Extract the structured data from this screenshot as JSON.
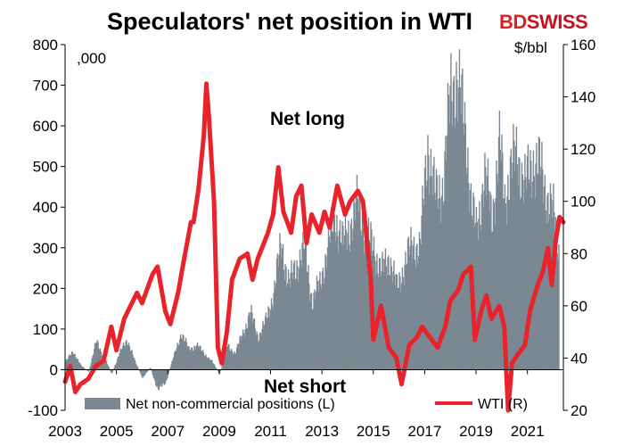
{
  "title": "Speculators' net position in WTI",
  "brand": {
    "part1": "BD",
    "part2": "SWISS"
  },
  "left_unit": ",000",
  "right_unit": "$/bbl",
  "annotations": {
    "long": "Net long",
    "short": "Net short"
  },
  "legend": {
    "bars": "Net non-commercial positions (L)",
    "line": "WTI (R)"
  },
  "colors": {
    "bars": "#7b8893",
    "line": "#e8232b"
  },
  "chart_data": {
    "type": "bar+line",
    "title": "Speculators' net position in WTI",
    "x_ticks": [
      "2003",
      "2005",
      "2007",
      "2009",
      "2011",
      "2013",
      "2015",
      "2017",
      "2019",
      "2021"
    ],
    "left_axis": {
      "label": ",000",
      "range": [
        -100,
        800
      ],
      "ticks": [
        -100,
        0,
        100,
        200,
        300,
        400,
        500,
        600,
        700,
        800
      ]
    },
    "right_axis": {
      "label": "$/bbl",
      "range": [
        20,
        160
      ],
      "ticks": [
        20,
        40,
        60,
        80,
        100,
        120,
        140,
        160
      ]
    },
    "x_range": [
      2003.0,
      2022.4
    ],
    "series": [
      {
        "name": "Net non-commercial positions (L)",
        "type": "bar",
        "axis": "left",
        "points": [
          [
            2003.0,
            20
          ],
          [
            2003.3,
            45
          ],
          [
            2003.6,
            10
          ],
          [
            2003.9,
            -5
          ],
          [
            2004.2,
            70
          ],
          [
            2004.5,
            30
          ],
          [
            2004.8,
            -10
          ],
          [
            2005.1,
            40
          ],
          [
            2005.4,
            75
          ],
          [
            2005.7,
            20
          ],
          [
            2006.0,
            -20
          ],
          [
            2006.3,
            5
          ],
          [
            2006.6,
            -50
          ],
          [
            2006.9,
            -30
          ],
          [
            2007.2,
            30
          ],
          [
            2007.5,
            90
          ],
          [
            2007.8,
            50
          ],
          [
            2008.1,
            60
          ],
          [
            2008.4,
            40
          ],
          [
            2008.7,
            20
          ],
          [
            2009.0,
            -10
          ],
          [
            2009.3,
            60
          ],
          [
            2009.6,
            40
          ],
          [
            2009.9,
            90
          ],
          [
            2010.2,
            140
          ],
          [
            2010.5,
            80
          ],
          [
            2010.8,
            120
          ],
          [
            2011.1,
            190
          ],
          [
            2011.4,
            310
          ],
          [
            2011.7,
            210
          ],
          [
            2012.0,
            260
          ],
          [
            2012.3,
            300
          ],
          [
            2012.6,
            170
          ],
          [
            2012.9,
            210
          ],
          [
            2013.2,
            300
          ],
          [
            2013.5,
            380
          ],
          [
            2013.8,
            310
          ],
          [
            2014.1,
            360
          ],
          [
            2014.4,
            410
          ],
          [
            2014.7,
            330
          ],
          [
            2015.0,
            300
          ],
          [
            2015.3,
            240
          ],
          [
            2015.6,
            280
          ],
          [
            2015.9,
            200
          ],
          [
            2016.2,
            260
          ],
          [
            2016.5,
            310
          ],
          [
            2016.8,
            300
          ],
          [
            2017.1,
            560
          ],
          [
            2017.4,
            420
          ],
          [
            2017.7,
            460
          ],
          [
            2018.0,
            680
          ],
          [
            2018.2,
            730
          ],
          [
            2018.4,
            650
          ],
          [
            2018.6,
            580
          ],
          [
            2018.8,
            400
          ],
          [
            2019.0,
            340
          ],
          [
            2019.3,
            480
          ],
          [
            2019.6,
            380
          ],
          [
            2019.9,
            550
          ],
          [
            2020.1,
            420
          ],
          [
            2020.3,
            490
          ],
          [
            2020.6,
            530
          ],
          [
            2020.9,
            450
          ],
          [
            2021.2,
            520
          ],
          [
            2021.5,
            490
          ],
          [
            2021.8,
            420
          ],
          [
            2022.0,
            380
          ],
          [
            2022.2,
            300
          ]
        ]
      },
      {
        "name": "WTI (R)",
        "type": "line",
        "axis": "right",
        "points": [
          [
            2003.0,
            31
          ],
          [
            2003.2,
            37
          ],
          [
            2003.4,
            27
          ],
          [
            2003.6,
            30
          ],
          [
            2003.9,
            32
          ],
          [
            2004.2,
            37
          ],
          [
            2004.5,
            39
          ],
          [
            2004.8,
            52
          ],
          [
            2005.0,
            43
          ],
          [
            2005.3,
            55
          ],
          [
            2005.6,
            61
          ],
          [
            2005.8,
            65
          ],
          [
            2006.0,
            61
          ],
          [
            2006.4,
            72
          ],
          [
            2006.6,
            75
          ],
          [
            2006.9,
            58
          ],
          [
            2007.1,
            53
          ],
          [
            2007.4,
            65
          ],
          [
            2007.6,
            76
          ],
          [
            2007.9,
            92
          ],
          [
            2008.0,
            92
          ],
          [
            2008.2,
            105
          ],
          [
            2008.4,
            125
          ],
          [
            2008.5,
            145
          ],
          [
            2008.6,
            132
          ],
          [
            2008.8,
            100
          ],
          [
            2008.95,
            44
          ],
          [
            2009.1,
            38
          ],
          [
            2009.3,
            50
          ],
          [
            2009.5,
            70
          ],
          [
            2009.8,
            78
          ],
          [
            2010.1,
            80
          ],
          [
            2010.3,
            70
          ],
          [
            2010.5,
            78
          ],
          [
            2010.9,
            88
          ],
          [
            2011.1,
            95
          ],
          [
            2011.3,
            113
          ],
          [
            2011.5,
            96
          ],
          [
            2011.8,
            88
          ],
          [
            2012.0,
            102
          ],
          [
            2012.2,
            106
          ],
          [
            2012.4,
            84
          ],
          [
            2012.6,
            95
          ],
          [
            2012.9,
            88
          ],
          [
            2013.1,
            96
          ],
          [
            2013.3,
            90
          ],
          [
            2013.6,
            106
          ],
          [
            2013.9,
            95
          ],
          [
            2014.1,
            100
          ],
          [
            2014.4,
            104
          ],
          [
            2014.6,
            100
          ],
          [
            2014.9,
            70
          ],
          [
            2015.0,
            47
          ],
          [
            2015.3,
            60
          ],
          [
            2015.6,
            44
          ],
          [
            2015.9,
            40
          ],
          [
            2016.1,
            30
          ],
          [
            2016.4,
            45
          ],
          [
            2016.7,
            48
          ],
          [
            2016.9,
            52
          ],
          [
            2017.2,
            48
          ],
          [
            2017.5,
            44
          ],
          [
            2017.8,
            52
          ],
          [
            2018.0,
            62
          ],
          [
            2018.3,
            66
          ],
          [
            2018.5,
            72
          ],
          [
            2018.8,
            75
          ],
          [
            2018.95,
            47
          ],
          [
            2019.2,
            58
          ],
          [
            2019.4,
            64
          ],
          [
            2019.6,
            55
          ],
          [
            2019.9,
            60
          ],
          [
            2020.1,
            52
          ],
          [
            2020.25,
            20
          ],
          [
            2020.4,
            38
          ],
          [
            2020.6,
            41
          ],
          [
            2020.9,
            45
          ],
          [
            2021.1,
            58
          ],
          [
            2021.4,
            68
          ],
          [
            2021.6,
            73
          ],
          [
            2021.8,
            82
          ],
          [
            2021.95,
            68
          ],
          [
            2022.1,
            85
          ],
          [
            2022.25,
            94
          ],
          [
            2022.4,
            92
          ]
        ]
      }
    ],
    "grid": false,
    "legend_position": "bottom"
  }
}
